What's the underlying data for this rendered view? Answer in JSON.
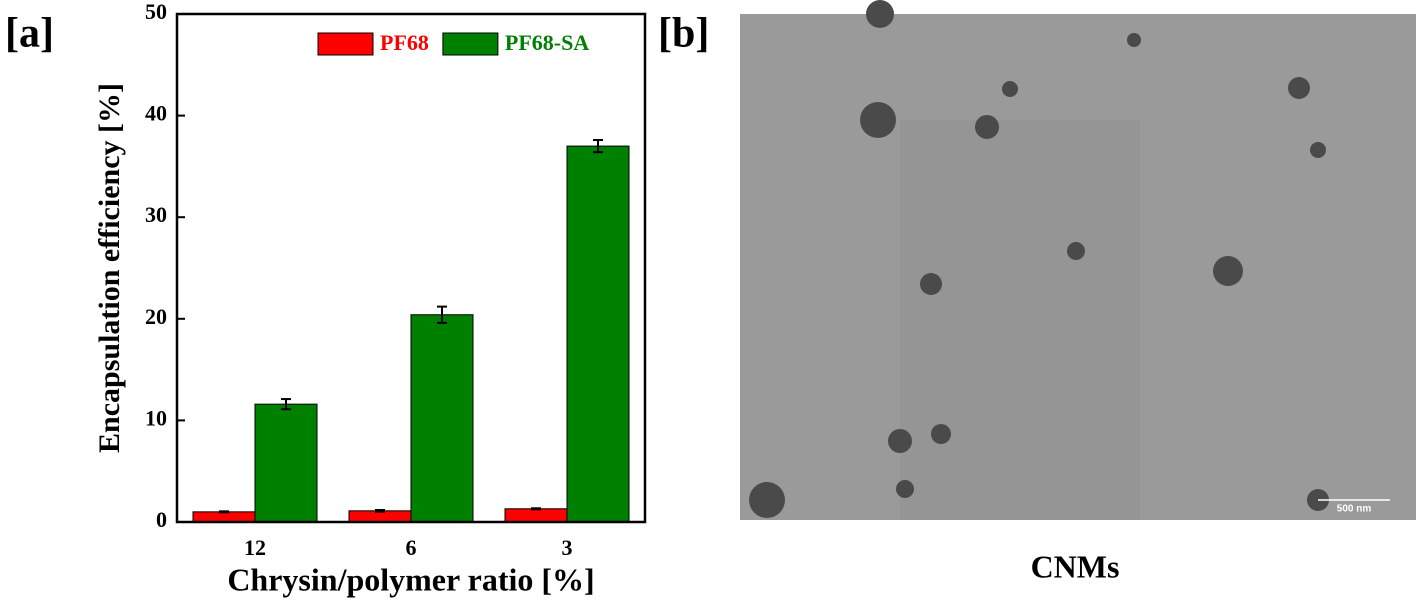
{
  "panel_labels": [
    "[a]",
    "[b]"
  ],
  "image_caption": "CNMs",
  "scale_bar": "500 nm",
  "chart_data": {
    "type": "bar",
    "x_label": "Chrysin/polymer ratio [%]",
    "y_label": "Encapsulation efficiency [%]",
    "categories": [
      "12",
      "6",
      "3"
    ],
    "series": [
      {
        "name": "PF68",
        "color": "#ff0000",
        "values": [
          1.0,
          1.1,
          1.3
        ],
        "errors": [
          0.05,
          0.08,
          0.05
        ]
      },
      {
        "name": "PF68-SA",
        "color": "#008000",
        "values": [
          11.6,
          20.4,
          37.0
        ],
        "errors": [
          0.5,
          0.8,
          0.6
        ]
      }
    ],
    "ylim": [
      0,
      50
    ],
    "yticks": [
      0,
      10,
      20,
      30,
      40,
      50
    ],
    "legend": "upper-right"
  }
}
